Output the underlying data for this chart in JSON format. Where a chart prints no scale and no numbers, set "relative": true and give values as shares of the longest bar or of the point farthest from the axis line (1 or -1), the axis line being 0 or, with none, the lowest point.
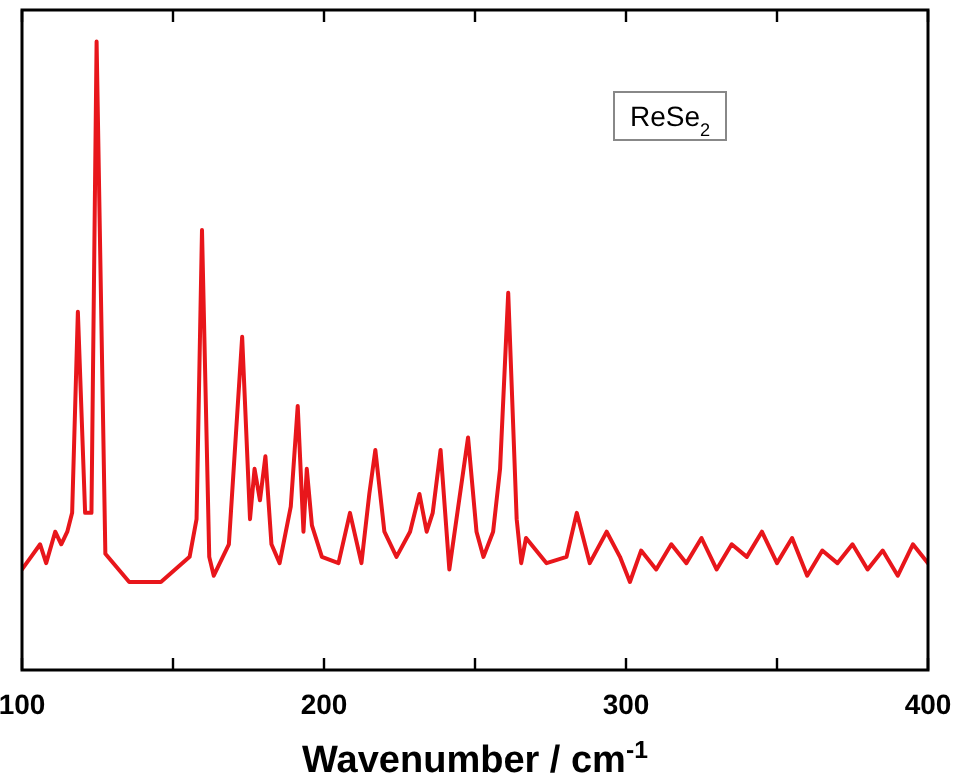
{
  "chart_data": {
    "type": "line",
    "relative": true,
    "xlabel": "Wavenumber / cm$^{-1}$",
    "annotations": [
      "ReSe$_{2}$"
    ],
    "xlim": [
      100,
      400
    ],
    "xticks": [
      100,
      {
        "value": 150,
        "label": null
      },
      200,
      {
        "value": 250,
        "label": null
      },
      300,
      {
        "value": 350,
        "label": null
      },
      400
    ],
    "line_style": "solid",
    "series": [
      {
        "color": "#e8161b",
        "x": [
          100,
          103,
          106,
          108,
          111,
          113,
          115,
          116.6,
          118.5,
          120.9,
          123,
          124.7,
          127.6,
          135.5,
          146,
          155.5,
          157.8,
          159.6,
          162,
          163.5,
          168.5,
          172.9,
          175.5,
          177,
          178.8,
          180.6,
          182.6,
          185.3,
          189,
          191.3,
          193.2,
          194.3,
          196,
          199.3,
          204.8,
          208.6,
          212.4,
          215,
          217,
          220,
          224,
          228.5,
          231.6,
          234,
          236,
          238.6,
          241.5,
          247.7,
          250.5,
          252.8,
          256,
          258.3,
          261,
          263.8,
          265.3,
          266.9,
          273.7,
          280.3,
          283.7,
          288,
          293.6,
          298,
          301.3,
          305,
          310,
          315,
          320,
          325,
          330,
          335,
          340,
          345,
          350,
          355,
          360,
          365,
          370,
          375,
          380,
          385,
          390,
          395,
          400
        ],
        "values": [
          0.16,
          0.18,
          0.2,
          0.17,
          0.22,
          0.2,
          0.22,
          0.25,
          0.57,
          0.25,
          0.25,
          1,
          0.185,
          0.14,
          0.14,
          0.18,
          0.24,
          0.7,
          0.18,
          0.15,
          0.2,
          0.53,
          0.24,
          0.32,
          0.27,
          0.34,
          0.2,
          0.17,
          0.26,
          0.42,
          0.22,
          0.32,
          0.23,
          0.18,
          0.17,
          0.25,
          0.17,
          0.28,
          0.35,
          0.22,
          0.18,
          0.22,
          0.28,
          0.22,
          0.25,
          0.35,
          0.16,
          0.37,
          0.22,
          0.18,
          0.22,
          0.32,
          0.6,
          0.24,
          0.17,
          0.21,
          0.17,
          0.18,
          0.25,
          0.17,
          0.22,
          0.18,
          0.14,
          0.19,
          0.16,
          0.2,
          0.17,
          0.21,
          0.16,
          0.2,
          0.18,
          0.22,
          0.17,
          0.21,
          0.15,
          0.19,
          0.17,
          0.2,
          0.16,
          0.19,
          0.15,
          0.2,
          0.17
        ]
      }
    ]
  }
}
